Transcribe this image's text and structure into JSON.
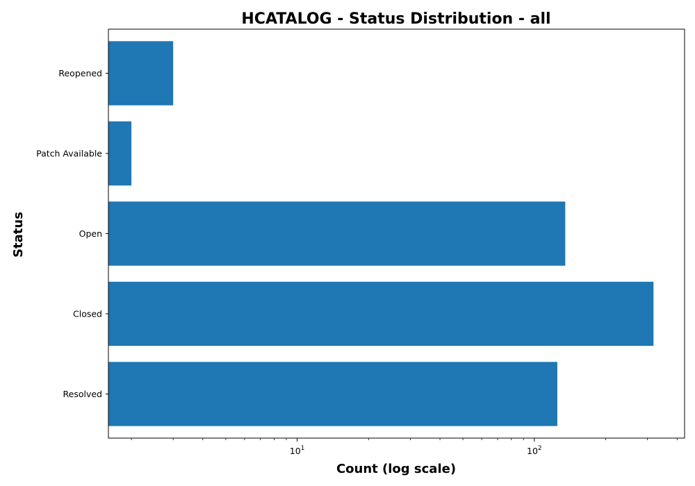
{
  "chart_data": {
    "type": "bar",
    "orientation": "horizontal",
    "title": "HCATALOG - Status Distribution - all",
    "xlabel": "Count (log scale)",
    "ylabel": "Status",
    "xscale": "log",
    "xlim": [
      1.6,
      430
    ],
    "categories": [
      "Resolved",
      "Closed",
      "Open",
      "Patch Available",
      "Reopened"
    ],
    "values": [
      125,
      318,
      135,
      2,
      3
    ],
    "x_major_ticks": [
      {
        "base": "10",
        "exp": "1",
        "value": 10
      },
      {
        "base": "10",
        "exp": "2",
        "value": 100
      }
    ],
    "bar_color": "#1f77b4",
    "grid": false,
    "legend": "none"
  }
}
